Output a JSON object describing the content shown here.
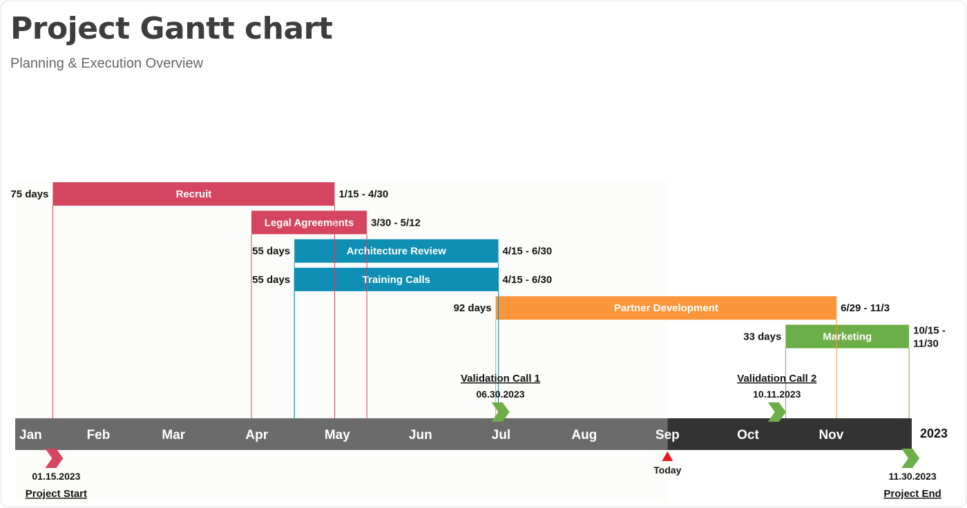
{
  "header": {
    "title": "Project Gantt chart",
    "subtitle": "Planning & Execution Overview"
  },
  "chart_data": {
    "type": "gantt",
    "year": "2023",
    "months": [
      "Jan",
      "Feb",
      "Mar",
      "Apr",
      "May",
      "Jun",
      "Jul",
      "Aug",
      "Sep",
      "Oct",
      "Nov"
    ],
    "x_range": [
      "2023-01-01",
      "2023-12-01"
    ],
    "today": {
      "label": "Today",
      "date": "2023-09-01"
    },
    "colors": {
      "axis_past": "#6b6b6b",
      "axis_future": "#333333",
      "plot_bg": "#fcfcfa",
      "today_marker": "#e8191a"
    },
    "tasks": [
      {
        "name": "Recruit",
        "start": "2023-01-15",
        "end": "2023-04-30",
        "duration_label": "75 days",
        "range_label": [
          "1/15 - 4/30"
        ],
        "color": "#d6455f"
      },
      {
        "name": "Legal Agreements",
        "start": "2023-03-30",
        "end": "2023-05-12",
        "duration_label": "",
        "range_label": [
          "3/30 - 5/12"
        ],
        "color": "#d6455f"
      },
      {
        "name": "Architecture Review",
        "start": "2023-04-15",
        "end": "2023-06-30",
        "duration_label": "55 days",
        "range_label": [
          "4/15 - 6/30"
        ],
        "color": "#0e8fb3"
      },
      {
        "name": "Training Calls",
        "start": "2023-04-15",
        "end": "2023-06-30",
        "duration_label": "55 days",
        "range_label": [
          "4/15 - 6/30"
        ],
        "color": "#0e8fb3"
      },
      {
        "name": "Partner Development",
        "start": "2023-06-29",
        "end": "2023-11-03",
        "duration_label": "92 days",
        "range_label": [
          "6/29 - 11/3"
        ],
        "color": "#fb963c"
      },
      {
        "name": "Marketing",
        "start": "2023-10-15",
        "end": "2023-11-30",
        "duration_label": "33 days",
        "range_label": [
          "10/15 -",
          "11/30"
        ],
        "color": "#6cae47"
      }
    ],
    "milestones": [
      {
        "name": "Project Start",
        "date_label": "01.15.2023",
        "date": "2023-01-15",
        "position": "below",
        "color": "#d6455f"
      },
      {
        "name": "Validation Call 1",
        "date_label": "06.30.2023",
        "date": "2023-06-30",
        "position": "above",
        "color": "#6cae47"
      },
      {
        "name": "Validation Call 2",
        "date_label": "10.11.2023",
        "date": "2023-10-11",
        "position": "above",
        "color": "#6cae47"
      },
      {
        "name": "Project End",
        "date_label": "11.30.2023",
        "date": "2023-11-30",
        "position": "below",
        "color": "#6cae47"
      }
    ]
  }
}
